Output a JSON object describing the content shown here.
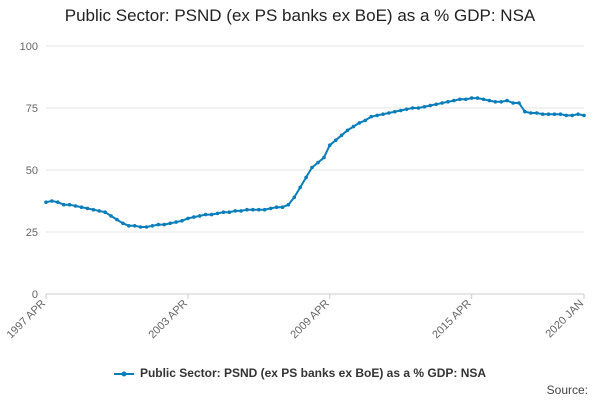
{
  "chart_data": {
    "type": "line",
    "title": "Public Sector: PSND (ex PS banks ex BoE) as a % GDP: NSA",
    "xlabel": "",
    "ylabel": "",
    "ylim": [
      0,
      100
    ],
    "y_ticks": [
      0,
      25,
      50,
      75,
      100
    ],
    "x_ticks": [
      "1997 APR",
      "2003 APR",
      "2009 APR",
      "2015 APR",
      "2020 JAN"
    ],
    "x_tick_years": [
      1997.25,
      2003.25,
      2009.25,
      2015.25,
      2020.0
    ],
    "grid": "horizontal",
    "legend_position": "bottom",
    "colors": {
      "series": "#0b7dba",
      "grid": "#e6e6e6",
      "axis": "#cccccc"
    },
    "series": [
      {
        "name": "Public Sector: PSND (ex PS banks ex BoE) as a % GDP: NSA",
        "x": [
          1997.25,
          1997.5,
          1997.75,
          1998.0,
          1998.25,
          1998.5,
          1998.75,
          1999.0,
          1999.25,
          1999.5,
          1999.75,
          2000.0,
          2000.25,
          2000.5,
          2000.75,
          2001.0,
          2001.25,
          2001.5,
          2001.75,
          2002.0,
          2002.25,
          2002.5,
          2002.75,
          2003.0,
          2003.25,
          2003.5,
          2003.75,
          2004.0,
          2004.25,
          2004.5,
          2004.75,
          2005.0,
          2005.25,
          2005.5,
          2005.75,
          2006.0,
          2006.25,
          2006.5,
          2006.75,
          2007.0,
          2007.25,
          2007.5,
          2007.75,
          2008.0,
          2008.25,
          2008.5,
          2008.75,
          2009.0,
          2009.25,
          2009.5,
          2009.75,
          2010.0,
          2010.25,
          2010.5,
          2010.75,
          2011.0,
          2011.25,
          2011.5,
          2011.75,
          2012.0,
          2012.25,
          2012.5,
          2012.75,
          2013.0,
          2013.25,
          2013.5,
          2013.75,
          2014.0,
          2014.25,
          2014.5,
          2014.75,
          2015.0,
          2015.25,
          2015.5,
          2015.75,
          2016.0,
          2016.25,
          2016.5,
          2016.75,
          2017.0,
          2017.25,
          2017.5,
          2017.75,
          2018.0,
          2018.25,
          2018.5,
          2018.75,
          2019.0,
          2019.25,
          2019.5,
          2019.75,
          2020.0
        ],
        "values": [
          37,
          37.5,
          37,
          36,
          36,
          35.5,
          35,
          34.5,
          34,
          33.5,
          33,
          31.5,
          30,
          28.5,
          27.5,
          27.5,
          27,
          27,
          27.5,
          28,
          28,
          28.5,
          29,
          29.5,
          30.5,
          31,
          31.5,
          32,
          32,
          32.5,
          33,
          33,
          33.5,
          33.5,
          34,
          34,
          34,
          34,
          34.5,
          35,
          35,
          36,
          39,
          43,
          47,
          51,
          53,
          55,
          60,
          62,
          64,
          66,
          67.5,
          69,
          70,
          71.5,
          72,
          72.5,
          73,
          73.5,
          74,
          74.5,
          75,
          75,
          75.5,
          76,
          76.5,
          77,
          77.5,
          78,
          78.5,
          78.5,
          79,
          79,
          78.5,
          78,
          77.5,
          77.5,
          78,
          77,
          77,
          73.5,
          73,
          73,
          72.5,
          72.5,
          72.5,
          72.5,
          72,
          72,
          72.5,
          72
        ]
      }
    ]
  },
  "source_label": "Source:"
}
